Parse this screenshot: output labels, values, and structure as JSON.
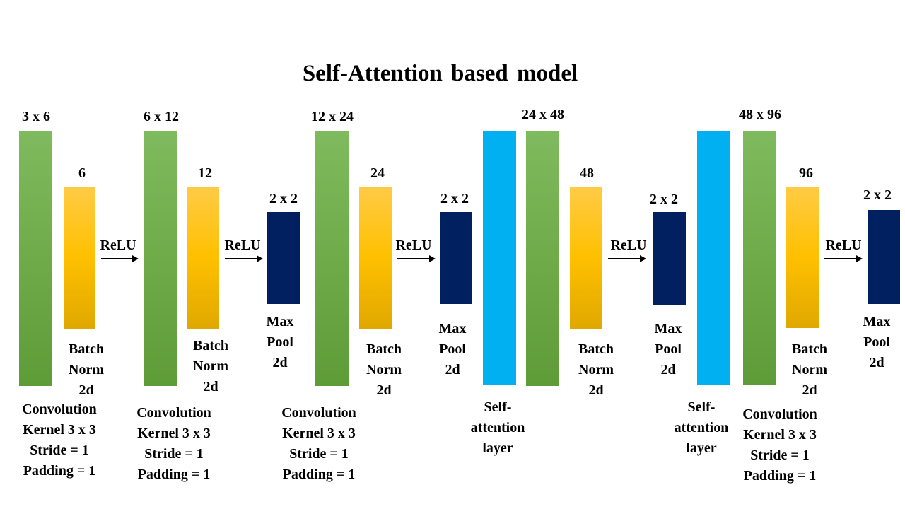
{
  "title": "Self-Attention based model",
  "stages": [
    {
      "conv_size": "3 x 6",
      "conv_desc": "Convolution\nKernel 3 x 3\nStride = 1\nPadding = 1",
      "bn_size": "6",
      "bn_label": "Batch\nNorm\n2d",
      "activation": "ReLU"
    },
    {
      "conv_size": "6 x 12",
      "conv_desc": "Convolution\nKernel 3 x 3\nStride = 1\nPadding = 1",
      "bn_size": "12",
      "bn_label": "Batch\nNorm\n2d",
      "activation": "ReLU",
      "pool_size": "2 x 2",
      "pool_label": "Max\nPool\n2d"
    },
    {
      "conv_size": "12 x 24",
      "conv_desc": "Convolution\nKernel 3 x 3\nStride = 1\nPadding = 1",
      "bn_size": "24",
      "bn_label": "Batch\nNorm\n2d",
      "activation": "ReLU",
      "pool_size": "2 x 2",
      "pool_label": "Max\nPool\n2d",
      "attn_label": "Self-\nattention\nlayer"
    },
    {
      "conv_size": "24 x 48",
      "bn_size": "48",
      "bn_label": "Batch\nNorm\n2d",
      "activation": "ReLU",
      "pool_size": "2 x 2",
      "pool_label": "Max\nPool\n2d",
      "attn_label": "Self-\nattention\nlayer"
    },
    {
      "conv_size": "48 x 96",
      "conv_desc": "Convolution\nKernel 3 x 3\nStride = 1\nPadding = 1",
      "bn_size": "96",
      "bn_label": "Batch\nNorm\n2d",
      "activation": "ReLU",
      "pool_size": "2 x 2",
      "pool_label": "Max\nPool\n2d"
    }
  ],
  "colors": {
    "convolution": "#70ad47",
    "batch_norm": "#ffc000",
    "max_pool": "#00205f",
    "self_attention": "#00b0f0",
    "text": "#000000"
  }
}
